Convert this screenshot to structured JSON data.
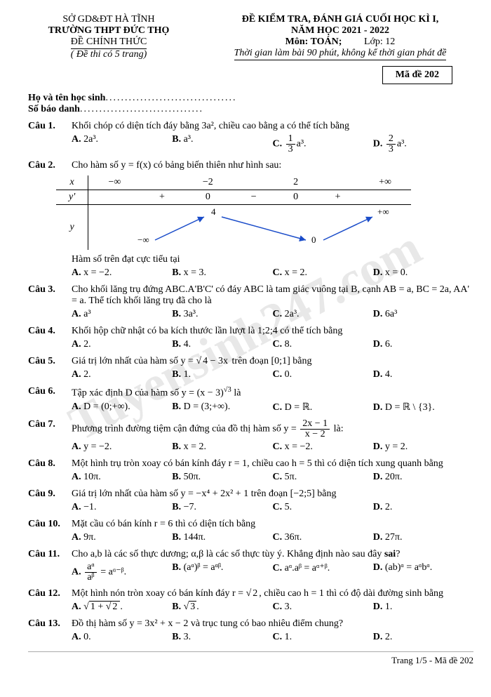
{
  "header": {
    "dept": "SỞ GD&ĐT HÀ TĨNH",
    "school": "TRƯỜNG THPT ĐỨC THỌ",
    "official": "ĐỀ CHÍNH THỨC",
    "pages": "( Đề thi có 5 trang)",
    "title1": "ĐỀ KIỂM TRA, ĐÁNH GIÁ CUỐI HỌC KÌ I,",
    "title2": "NĂM HỌC 2021 - 2022",
    "subject": "Môn: TOÁN;",
    "grade": "Lớp: 12",
    "time": "Thời gian làm bài 90 phút, không kể thời gian phát đề",
    "code": "Mã đề 202"
  },
  "student": {
    "name_lbl": "Họ và tên học sinh",
    "id_lbl": "Số báo danh"
  },
  "watermark": "Tuyensinh247.com",
  "footer": "Trang 1/5 - Mã đề 202",
  "table": {
    "xrow": [
      "x",
      "−∞",
      "−2",
      "2",
      "+∞"
    ],
    "yprow": [
      "y'",
      "+",
      "0",
      "−",
      "0",
      "+"
    ],
    "yrow": {
      "label": "y",
      "left": "−∞",
      "peak": "4",
      "valley": "0",
      "right": "+∞"
    },
    "colors": {
      "line": "#000",
      "arrow": "#1a4cc9"
    }
  },
  "questions": [
    {
      "n": "Câu 1.",
      "t": "Khối chóp có diện tích đáy bằng 3a², chiều cao bằng a có thể tích bằng",
      "o": [
        "2a³.",
        "a³.",
        "<f>1|3</f>a³.",
        "<f>2|3</f>a³."
      ]
    },
    {
      "n": "Câu 2.",
      "t": "Cho hàm số y = f(x) có bảng biến thiên như hình sau:",
      "after": "Hàm số trên đạt cực tiểu tại",
      "o": [
        "x = −2.",
        "x = 3.",
        "x = 2.",
        "x = 0."
      ],
      "table": true
    },
    {
      "n": "Câu 3.",
      "t": "Cho khối lăng trụ đứng ABC.A'B'C' có đáy ABC là tam giác vuông tại B, cạnh AB = a, BC = 2a, AA' = a. Thể tích khối lăng trụ đã cho là",
      "o": [
        "a³",
        "3a³.",
        "2a³.",
        "6a³"
      ]
    },
    {
      "n": "Câu 4.",
      "t": "Khối hộp chữ nhật có ba kích thước lần lượt là 1;2;4 có thể tích bằng",
      "o": [
        "2.",
        "4.",
        "8.",
        "6."
      ]
    },
    {
      "n": "Câu 5.",
      "t": "Giá trị lớn nhất của hàm số y = <r>4 − 3x</r> trên đoạn [0;1] bằng",
      "o": [
        "2.",
        "1.",
        "0.",
        "4."
      ]
    },
    {
      "n": "Câu 6.",
      "t": "Tập xác định D của hàm số y = (x − 3)<sup>√3</sup> là",
      "o": [
        "D = (0;+∞).",
        "D = (3;+∞).",
        "D = ℝ.",
        "D = ℝ \\ {3}."
      ]
    },
    {
      "n": "Câu 7.",
      "t": "Phương trình đường tiệm cận đứng của đồ thị hàm số y = <f>2x − 1|x − 2</f> là:",
      "o": [
        "y = −2.",
        "x = 2.",
        "x = −2.",
        "y = 2."
      ]
    },
    {
      "n": "Câu 8.",
      "t": "Một hình trụ tròn xoay có bán kính đáy r = 1, chiều cao h = 5 thì có diện tích xung quanh bằng",
      "o": [
        "10π.",
        "50π.",
        "5π.",
        "20π."
      ]
    },
    {
      "n": "Câu 9.",
      "t": "Giá trị lớn nhất của hàm số y = −x⁴ + 2x² + 1 trên đoạn [−2;5] bằng",
      "o": [
        "−1.",
        "−7.",
        "5.",
        "2."
      ]
    },
    {
      "n": "Câu 10.",
      "t": "Mặt cầu có bán kính r = 6 thì có diện tích bằng",
      "o": [
        "9π.",
        "144π.",
        "36π.",
        "27π."
      ]
    },
    {
      "n": "Câu 11.",
      "t": "Cho a,b là các số thực dương; α,β là các số thực tùy ý. Khẳng định nào sau đây <b>sai</b>?",
      "o": [
        "<f>aᵅ|aᵝ</f> = aᵅ⁻ᵝ.",
        "(aᵅ)ᵝ = aᵅᵝ.",
        "aᵅ.aᵝ = aᵅ⁺ᵝ.",
        "(ab)ᵅ = aᵅbᵅ."
      ]
    },
    {
      "n": "Câu 12.",
      "t": "Một hình nón tròn xoay có bán kính đáy r = <r>2</r>, chiều cao h = 1 thì có độ dài đường sinh bằng",
      "o": [
        "<r>1 + <r>2</r></r>.",
        "<r>3</r>.",
        "3.",
        "1."
      ]
    },
    {
      "n": "Câu 13.",
      "t": "Đồ thị hàm số y = 3x² + x − 2 và trục tung có bao nhiêu điểm chung?",
      "o": [
        "0.",
        "3.",
        "1.",
        "2."
      ]
    }
  ],
  "opt_labels": [
    "A.",
    "B.",
    "C.",
    "D."
  ]
}
